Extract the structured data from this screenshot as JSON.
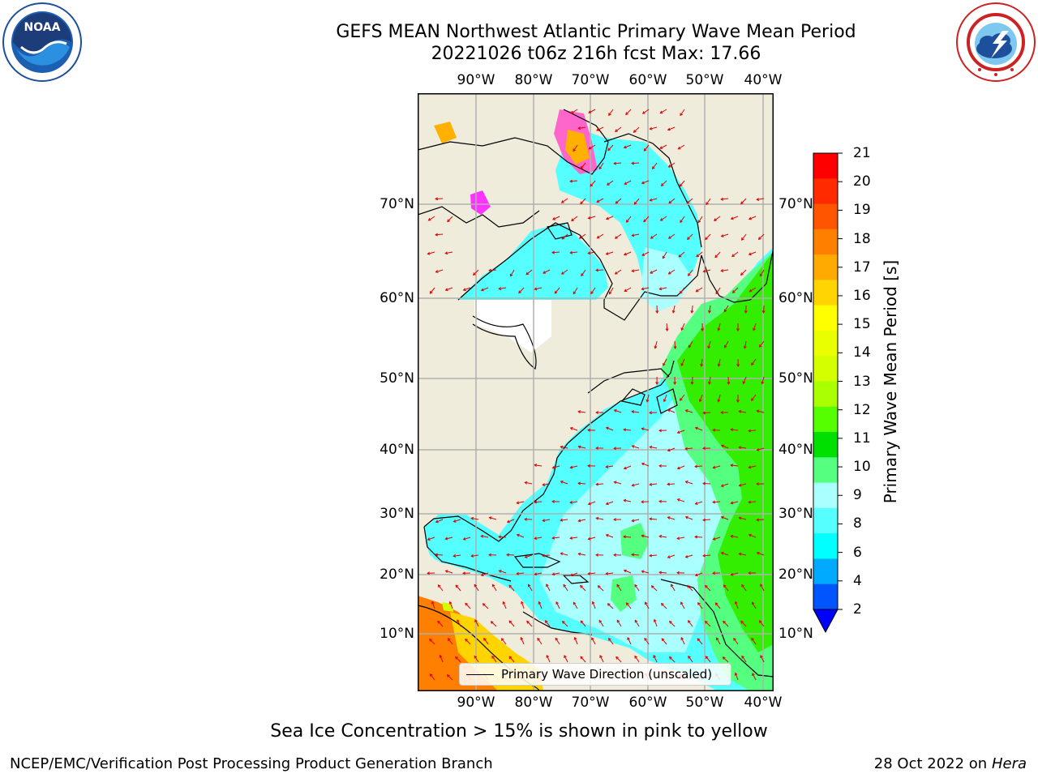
{
  "header": {
    "title_line1": "GEFS MEAN Northwest Atlantic Primary Wave Mean Period",
    "title_line2": "20221026 t06z 216h fcst   Max: 17.66"
  },
  "logos": {
    "left": {
      "name": "NOAA",
      "icon": "noaa-logo-icon"
    },
    "right": {
      "name": "National Weather Service",
      "icon": "nws-logo-icon"
    }
  },
  "map": {
    "lon_ticks": [
      "90°W",
      "80°W",
      "70°W",
      "60°W",
      "50°W",
      "40°W"
    ],
    "lat_ticks": [
      "70°N",
      "60°N",
      "50°N",
      "40°N",
      "30°N",
      "20°N",
      "10°N"
    ],
    "colors": {
      "land": "#efecdc",
      "coast": "#000000",
      "grid": "#b0b0b0",
      "arrow": "#e00000",
      "no_data": "#ffffff"
    }
  },
  "colorbar": {
    "title": "Primary Wave Mean Period [s]",
    "labels": [
      "21",
      "20",
      "19",
      "18",
      "17",
      "16",
      "15",
      "14",
      "13",
      "12",
      "11",
      "10",
      "9",
      "8",
      "6",
      "4",
      "2"
    ],
    "colors": [
      "#ff0000",
      "#ff2a00",
      "#ff5500",
      "#ff7f00",
      "#ffaa00",
      "#ffd400",
      "#ffff00",
      "#e9ff00",
      "#d4ff00",
      "#aaff00",
      "#55ff00",
      "#00e000",
      "#55ff80",
      "#aaffff",
      "#55ffff",
      "#00ffff",
      "#00aaff",
      "#0055ff"
    ],
    "under_color": "#0000ff"
  },
  "legend": {
    "label": "Primary Wave Direction (unscaled)"
  },
  "note": "Sea Ice Concentration > 15% is shown in pink to yellow",
  "footer": {
    "left": "NCEP/EMC/Verification Post Processing Product Generation Branch",
    "date": "28 Oct 2022 on ",
    "host": "Hera"
  }
}
